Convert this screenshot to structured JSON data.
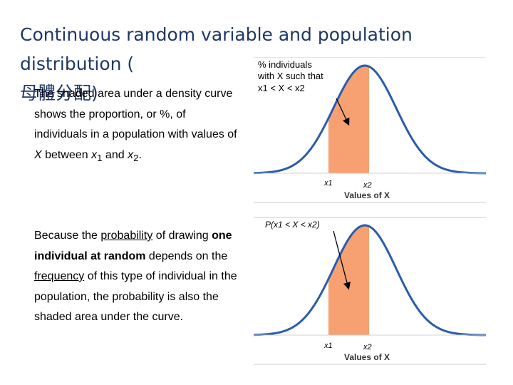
{
  "title": {
    "line1": "Continuous random variable and population distribution (",
    "line2": "母體分配)"
  },
  "paragraph1": {
    "text_a": "The shaded area under a density curve shows the proportion, or %, of individuals in a population with values of ",
    "var": "X",
    "text_b": " between ",
    "x1_base": "x",
    "x1_sub": "1",
    "and": " and ",
    "x2_base": "x",
    "x2_sub": "2",
    "period": "."
  },
  "paragraph2": {
    "text_a": "Because the ",
    "probability": "probability",
    "text_b": " of drawing ",
    "bold": "one individual at random",
    "text_c": " depends on the ",
    "frequency": "frequency",
    "text_d": " of this type of individual in the population, the probability is also the shaded area under the curve."
  },
  "figure1": {
    "annotation_line1": "% individuals",
    "annotation_line2": "with X such that",
    "annotation_line3": "x1 < X < x2",
    "x1_label": "x1",
    "x2_label": "x2",
    "axis_label": "Values of X"
  },
  "figure2": {
    "annotation": "P(x1 < X < x2)",
    "x1_label": "x1",
    "x2_label": "x2",
    "axis_label": "Values of X"
  },
  "colors": {
    "curve": "#2a5caa",
    "shade": "#f7a072",
    "title": "#1f3864",
    "arrow": "#000000"
  }
}
